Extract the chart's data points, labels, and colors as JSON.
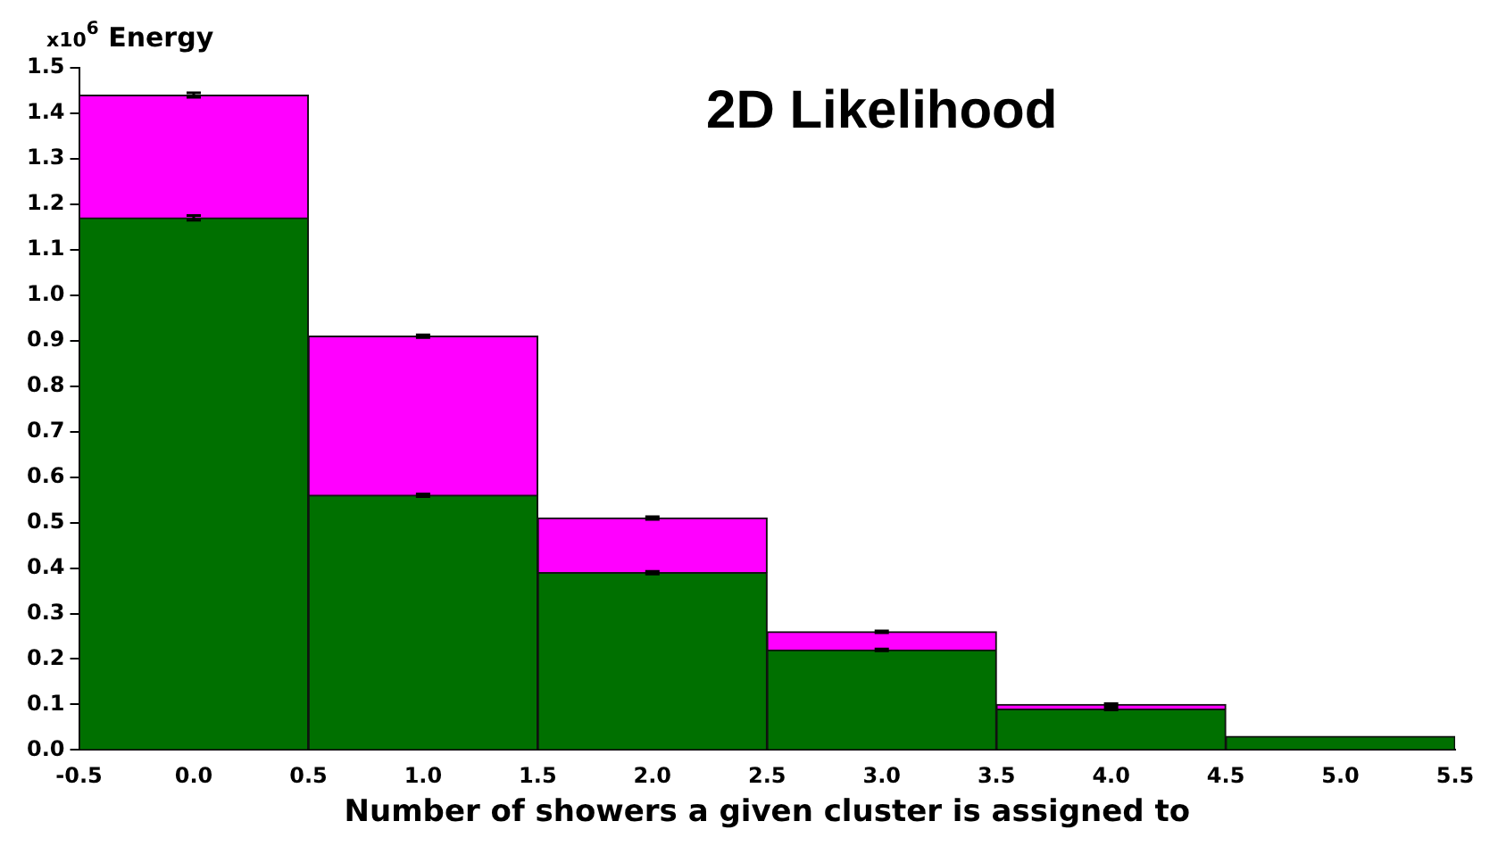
{
  "chart_data": {
    "type": "bar",
    "title": "2D Likelihood",
    "xlabel": "Number of showers a given cluster is assigned to",
    "ylabel": "x10$^{6}$ Energy",
    "x": [
      0,
      1,
      2,
      3,
      4,
      5
    ],
    "stacked": true,
    "series": [
      {
        "color": "#007000",
        "values": [
          1.17,
          0.56,
          0.39,
          0.22,
          0.09,
          0.03
        ],
        "errors": [
          0.005,
          0.003,
          0.003,
          0.002,
          0.002,
          null
        ]
      },
      {
        "color": "#ff00ff",
        "values": [
          0.27,
          0.35,
          0.12,
          0.04,
          0.01,
          null
        ],
        "errors": [
          0.005,
          0.003,
          0.003,
          0.002,
          0.002,
          null
        ]
      }
    ],
    "xlim": [
      -0.5,
      5.5
    ],
    "xticks": [
      -0.5,
      {
        "value": 0,
        "label": "0.0"
      },
      0.5,
      {
        "value": 1,
        "label": "1.0"
      },
      1.5,
      {
        "value": 2,
        "label": "2.0"
      },
      2.5,
      {
        "value": 3,
        "label": "3.0"
      },
      3.5,
      {
        "value": 4,
        "label": "4.0"
      },
      4.5,
      {
        "value": 5,
        "label": "5.0"
      },
      5.5
    ],
    "ylim": [
      0,
      1.5
    ],
    "yticks": [
      {
        "value": 0,
        "label": "0.0"
      },
      0.1,
      0.2,
      0.3,
      0.4,
      0.5,
      0.6,
      0.7,
      0.8,
      0.9,
      {
        "value": 1,
        "label": "1.0"
      },
      1.1,
      1.2,
      1.3,
      1.4,
      1.5
    ],
    "grid": false,
    "legend": false
  }
}
